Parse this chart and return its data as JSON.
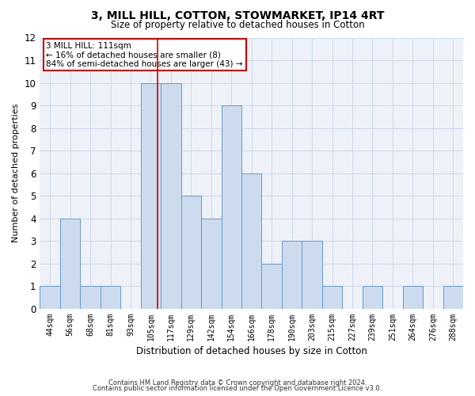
{
  "title": "3, MILL HILL, COTTON, STOWMARKET, IP14 4RT",
  "subtitle": "Size of property relative to detached houses in Cotton",
  "xlabel": "Distribution of detached houses by size in Cotton",
  "ylabel": "Number of detached properties",
  "categories": [
    "44sqm",
    "56sqm",
    "68sqm",
    "81sqm",
    "93sqm",
    "105sqm",
    "117sqm",
    "129sqm",
    "142sqm",
    "154sqm",
    "166sqm",
    "178sqm",
    "190sqm",
    "203sqm",
    "215sqm",
    "227sqm",
    "239sqm",
    "251sqm",
    "264sqm",
    "276sqm",
    "288sqm"
  ],
  "values": [
    1,
    4,
    1,
    1,
    0,
    10,
    10,
    5,
    4,
    9,
    6,
    2,
    3,
    3,
    1,
    0,
    1,
    0,
    1,
    0,
    1
  ],
  "bar_color": "#ccdcee",
  "bar_edge_color": "#6699cc",
  "ylim": [
    0,
    12
  ],
  "yticks": [
    0,
    1,
    2,
    3,
    4,
    5,
    6,
    7,
    8,
    9,
    10,
    11,
    12
  ],
  "annotation_text": "3 MILL HILL: 111sqm\n← 16% of detached houses are smaller (8)\n84% of semi-detached houses are larger (43) →",
  "red_line_color": "#cc0000",
  "annotation_box_edgecolor": "#cc0000",
  "grid_color": "#ccd8e8",
  "bg_color": "#eef2f8",
  "footer_line1": "Contains HM Land Registry data © Crown copyright and database right 2024.",
  "footer_line2": "Contains public sector information licensed under the Open Government Licence v3.0.",
  "red_line_x": 5.35
}
